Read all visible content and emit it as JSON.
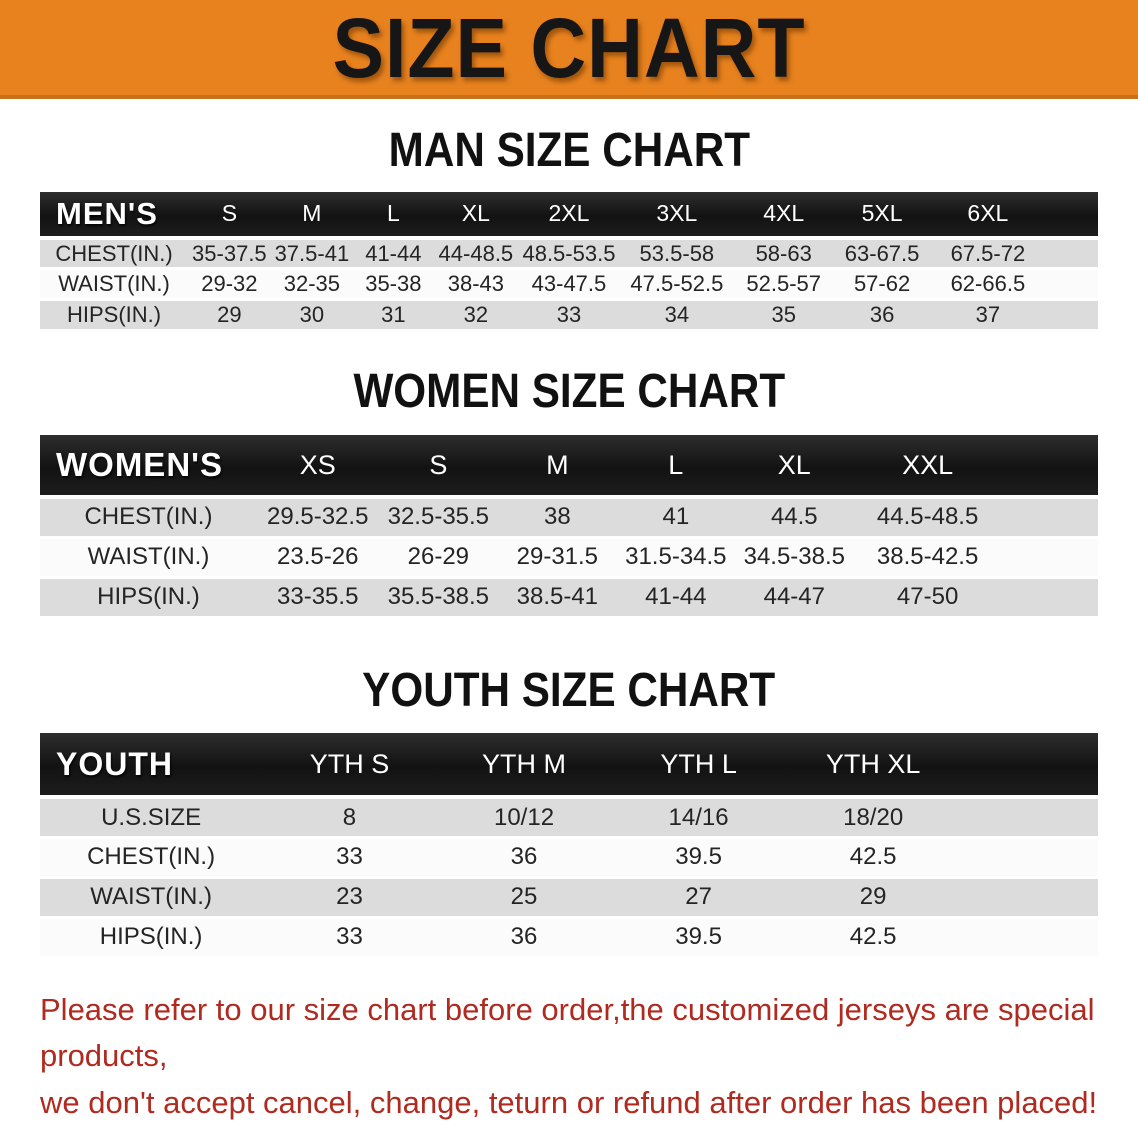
{
  "banner": {
    "title": "SIZE CHART",
    "bg_color": "#E8821E",
    "border_color": "#C9701A",
    "text_color": "#161616"
  },
  "sections": {
    "men": {
      "heading": "MAN SIZE CHART"
    },
    "women": {
      "heading": "WOMEN SIZE CHART"
    },
    "youth": {
      "heading": "YOUTH SIZE CHART"
    }
  },
  "tables": {
    "men": {
      "label": "MEN'S",
      "columns": [
        "S",
        "M",
        "L",
        "XL",
        "2XL",
        "3XL",
        "4XL",
        "5XL",
        "6XL"
      ],
      "rows": [
        {
          "label": "CHEST(IN.)",
          "values": [
            "35-37.5",
            "37.5-41",
            "41-44",
            "44-48.5",
            "48.5-53.5",
            "53.5-58",
            "58-63",
            "63-67.5",
            "67.5-72"
          ]
        },
        {
          "label": "WAIST(IN.)",
          "values": [
            "29-32",
            "32-35",
            "35-38",
            "38-43",
            "43-47.5",
            "47.5-52.5",
            "52.5-57",
            "57-62",
            "62-66.5"
          ]
        },
        {
          "label": "HIPS(IN.)",
          "values": [
            "29",
            "30",
            "31",
            "32",
            "33",
            "34",
            "35",
            "36",
            "37"
          ]
        }
      ]
    },
    "women": {
      "label": "WOMEN'S",
      "columns": [
        "XS",
        "S",
        "M",
        "L",
        "XL",
        "XXL"
      ],
      "rows": [
        {
          "label": "CHEST(IN.)",
          "values": [
            "29.5-32.5",
            "32.5-35.5",
            "38",
            "41",
            "44.5",
            "44.5-48.5"
          ]
        },
        {
          "label": "WAIST(IN.)",
          "values": [
            "23.5-26",
            "26-29",
            "29-31.5",
            "31.5-34.5",
            "34.5-38.5",
            "38.5-42.5"
          ]
        },
        {
          "label": "HIPS(IN.)",
          "values": [
            "33-35.5",
            "35.5-38.5",
            "38.5-41",
            "41-44",
            "44-47",
            "47-50"
          ]
        }
      ]
    },
    "youth": {
      "label": "YOUTH",
      "columns": [
        "YTH S",
        "YTH M",
        "YTH L",
        "YTH XL"
      ],
      "rows": [
        {
          "label": "U.S.SIZE",
          "values": [
            "8",
            "10/12",
            "14/16",
            "18/20"
          ]
        },
        {
          "label": "CHEST(IN.)",
          "values": [
            "33",
            "36",
            "39.5",
            "42.5"
          ]
        },
        {
          "label": "WAIST(IN.)",
          "values": [
            "23",
            "25",
            "27",
            "29"
          ]
        },
        {
          "label": "HIPS(IN.)",
          "values": [
            "33",
            "36",
            "39.5",
            "42.5"
          ]
        }
      ]
    }
  },
  "footer": {
    "line1": "Please refer to our size chart before order,the customized jerseys are special products,",
    "line2": "we don't accept cancel, change, teturn or refund after order has been placed!",
    "text_color": "#B02A20"
  },
  "colors": {
    "header_bar": "#1A1A1A",
    "header_text": "#FFFFFF",
    "row_gray": "#DCDCDC",
    "row_white": "#FBFBFB",
    "body_text": "#242424"
  }
}
